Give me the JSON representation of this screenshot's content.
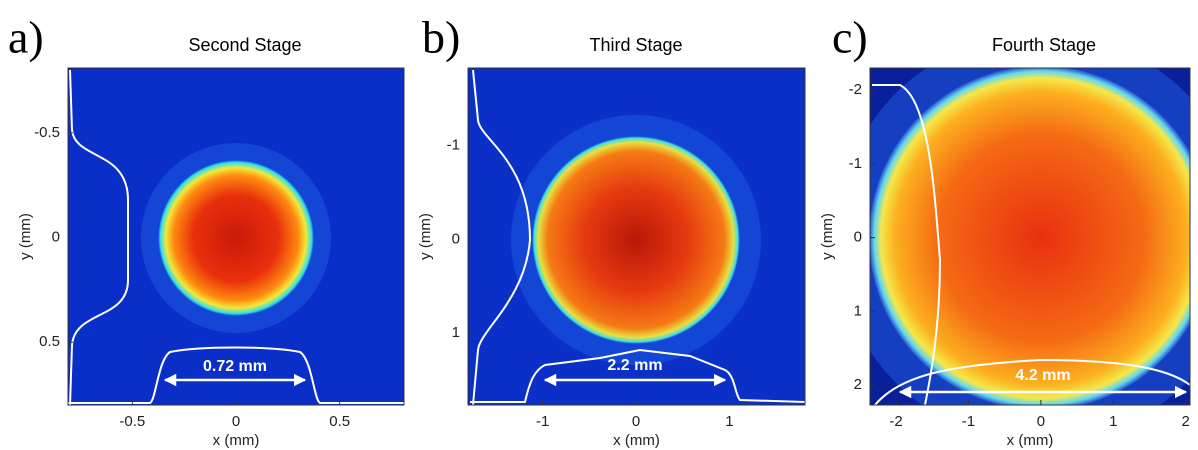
{
  "chart_data": [
    {
      "type": "heatmap",
      "panel_label": "a)",
      "title": "Second Stage",
      "xlabel": "x (mm)",
      "ylabel": "y (mm)",
      "xlim": [
        -0.81,
        0.81
      ],
      "xticks": [
        -0.5,
        0,
        0.5
      ],
      "ylim": [
        -0.81,
        0.8
      ],
      "yticks": [
        -0.5,
        0,
        0.5
      ],
      "y_inverted": true,
      "annotation": "0.72 mm"
    },
    {
      "type": "heatmap",
      "panel_label": "b)",
      "title": "Third Stage",
      "xlabel": "x (mm)",
      "ylabel": "y (mm)",
      "xlim": [
        -1.8,
        1.81
      ],
      "xticks": [
        -1,
        0,
        1
      ],
      "ylim": [
        -1.83,
        1.77
      ],
      "yticks": [
        -1,
        0,
        1
      ],
      "y_inverted": true,
      "annotation": "2.2 mm"
    },
    {
      "type": "heatmap",
      "panel_label": "c)",
      "title": "Fourth Stage",
      "xlabel": "x (mm)",
      "ylabel": "y (mm)",
      "xlim": [
        -2.36,
        2.06
      ],
      "xticks": [
        -2,
        -1,
        0,
        1,
        2
      ],
      "ylim": [
        -2.3,
        2.27
      ],
      "yticks": [
        -2,
        -1,
        0,
        1,
        2
      ],
      "y_inverted": true,
      "annotation": "4.2 mm"
    }
  ]
}
